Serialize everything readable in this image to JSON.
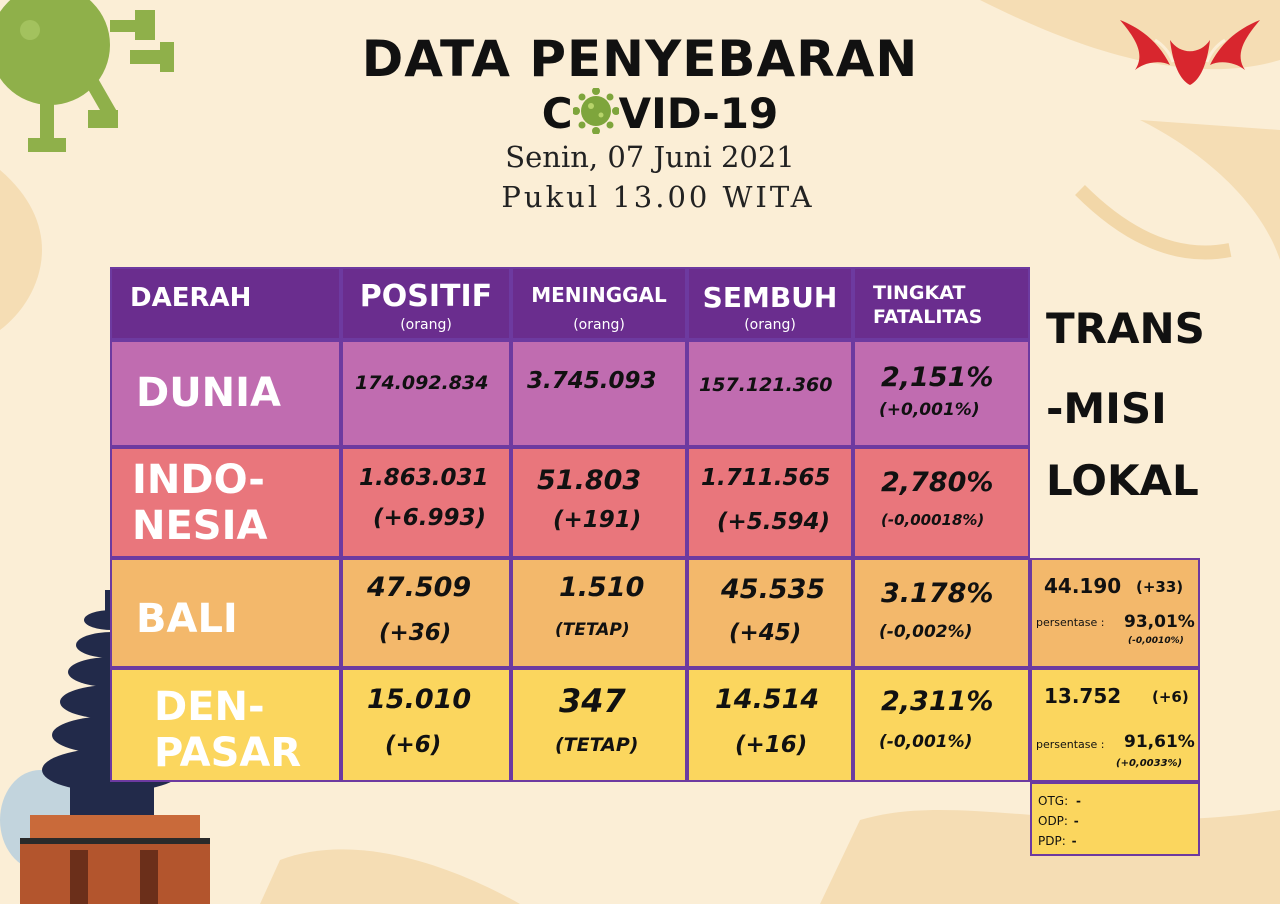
{
  "title": {
    "line1": "DATA PENYEBARAN",
    "line2_prefix": "C",
    "line2_suffix": "VID-19",
    "date": "Senin, 07 Juni 2021",
    "time": "Pukul 13.00 WITA"
  },
  "table": {
    "headers": {
      "daerah": "DAERAH",
      "positif": "POSITIF",
      "positif_unit": "(orang)",
      "meninggal": "MENINGGAL",
      "meninggal_unit": "(orang)",
      "sembuh": "SEMBUH",
      "sembuh_unit": "(orang)",
      "fatalitas_1": "TINGKAT",
      "fatalitas_2": "FATALITAS"
    },
    "rows": {
      "dunia": {
        "label1": "DUNIA",
        "positif": "174.092.834",
        "meninggal": "3.745.093",
        "sembuh": "157.121.360",
        "fatalitas": "2,151%",
        "fatalitas_change": "(+0,001%)"
      },
      "indonesia": {
        "label1": "INDO-",
        "label2": "NESIA",
        "positif": "1.863.031",
        "positif_change": "(+6.993)",
        "meninggal": "51.803",
        "meninggal_change": "(+191)",
        "sembuh": "1.711.565",
        "sembuh_change": "(+5.594)",
        "fatalitas": "2,780%",
        "fatalitas_change": "(-0,00018%)"
      },
      "bali": {
        "label1": "BALI",
        "positif": "47.509",
        "positif_change": "(+36)",
        "meninggal": "1.510",
        "meninggal_change": "(TETAP)",
        "sembuh": "45.535",
        "sembuh_change": "(+45)",
        "fatalitas": "3.178%",
        "fatalitas_change": "(-0,002%)"
      },
      "denpasar": {
        "label1": "DEN-",
        "label2": "PASAR",
        "positif": "15.010",
        "positif_change": "(+6)",
        "meninggal": "347",
        "meninggal_change": "(TETAP)",
        "sembuh": "14.514",
        "sembuh_change": "(+16)",
        "fatalitas": "2,311%",
        "fatalitas_change": "(-0,001%)"
      }
    }
  },
  "transmisi": {
    "line1": "TRANS",
    "line2": "-MISI",
    "line3": "LOKAL",
    "bali": {
      "value": "44.190",
      "change": "(+33)",
      "pct_label": "persentase :",
      "pct": "93,01%",
      "pct_change": "(-0,0010%)"
    },
    "denpasar": {
      "value": "13.752",
      "change": "(+6)",
      "pct_label": "persentase :",
      "pct": "91,61%",
      "pct_change": "(+0,0033%)"
    }
  },
  "status": {
    "otg_label": "OTG:",
    "otg": "-",
    "odp_label": "ODP:",
    "odp": "-",
    "pdp_label": "PDP:",
    "pdp": "-"
  },
  "icons": {
    "virus": "virus-icon",
    "logo": "bird-logo-icon",
    "temple": "meru-temple-icon"
  },
  "colors": {
    "header": "#6a2d8e",
    "dunia": "#c06cb0",
    "indonesia": "#e9767c",
    "bali": "#f3b86b",
    "denpasar": "#fbd65e"
  }
}
